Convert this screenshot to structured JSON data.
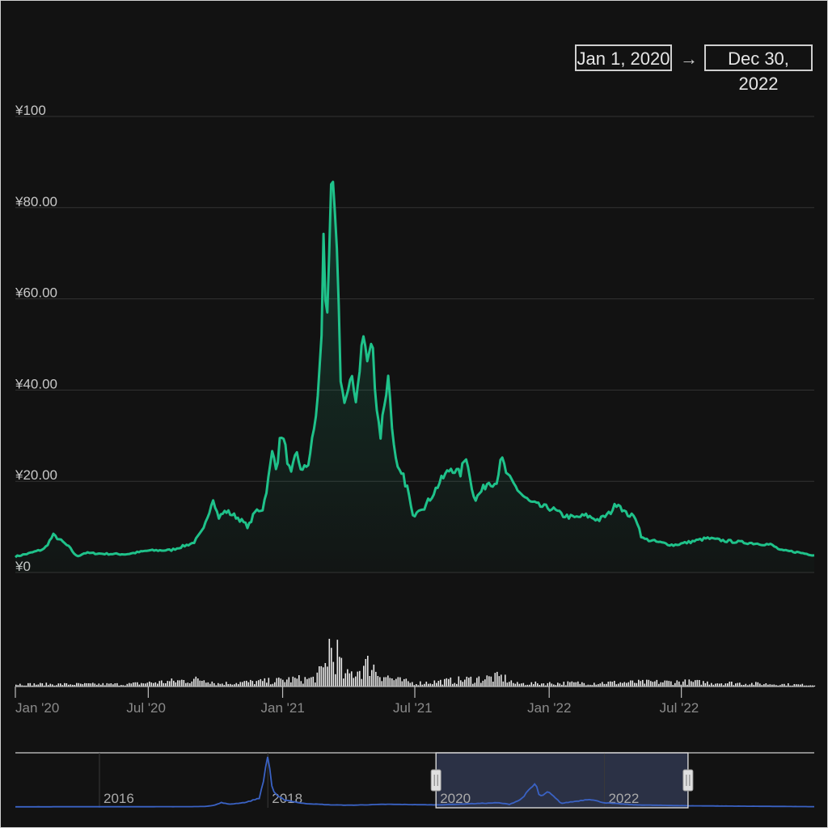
{
  "range_selector": {
    "start": "Jan 1, 2020",
    "arrow": "→",
    "end": "Dec 30, 2022"
  },
  "colors": {
    "background": "#121212",
    "price_line": "#1fc28a",
    "volume": "#e8e8e8",
    "navigator_line": "#3a62c4",
    "navigator_window": "#2b3145",
    "axis_text": "#8a8a8a",
    "label_text": "#c8c8c8",
    "grid": "#333333"
  },
  "chart_data": {
    "type": "line",
    "title": "",
    "y_axis": {
      "min": 0,
      "max": 100,
      "tick_values": [
        0,
        20,
        40,
        60,
        80,
        100
      ],
      "tick_labels": [
        "¥0",
        "¥20.00",
        "¥40.00",
        "¥60.00",
        "¥80.00",
        "¥100"
      ]
    },
    "x_axis": {
      "start": "2020-01-01",
      "end": "2022-12-30",
      "ticks": [
        {
          "date": "2020-01-01",
          "label": "Jan '20"
        },
        {
          "date": "2020-07-01",
          "label": "Jul '20"
        },
        {
          "date": "2021-01-01",
          "label": "Jan '21"
        },
        {
          "date": "2021-07-01",
          "label": "Jul '21"
        },
        {
          "date": "2022-01-01",
          "label": "Jan '22"
        },
        {
          "date": "2022-07-01",
          "label": "Jul '22"
        }
      ]
    },
    "series": [
      {
        "values": [
          [
            "2020-01-01",
            3.5
          ],
          [
            "2020-01-20",
            4.2
          ],
          [
            "2020-02-10",
            5.2
          ],
          [
            "2020-02-22",
            8.2
          ],
          [
            "2020-03-05",
            6.8
          ],
          [
            "2020-03-15",
            5.5
          ],
          [
            "2020-03-25",
            3.5
          ],
          [
            "2020-04-05",
            4.3
          ],
          [
            "2020-05-01",
            4.1
          ],
          [
            "2020-06-01",
            4.0
          ],
          [
            "2020-07-01",
            4.8
          ],
          [
            "2020-08-01",
            4.9
          ],
          [
            "2020-09-01",
            6.5
          ],
          [
            "2020-09-15",
            9.5
          ],
          [
            "2020-09-28",
            16.5
          ],
          [
            "2020-10-05",
            12.0
          ],
          [
            "2020-10-15",
            13.5
          ],
          [
            "2020-11-01",
            12.0
          ],
          [
            "2020-11-15",
            10.0
          ],
          [
            "2020-11-25",
            13.5
          ],
          [
            "2020-12-05",
            14.0
          ],
          [
            "2020-12-12",
            20.0
          ],
          [
            "2020-12-18",
            26.5
          ],
          [
            "2020-12-24",
            23.0
          ],
          [
            "2020-12-30",
            31.0
          ],
          [
            "2021-01-05",
            27.0
          ],
          [
            "2021-01-12",
            21.0
          ],
          [
            "2021-01-20",
            26.0
          ],
          [
            "2021-01-28",
            22.0
          ],
          [
            "2021-02-05",
            24.0
          ],
          [
            "2021-02-12",
            30.0
          ],
          [
            "2021-02-18",
            38.0
          ],
          [
            "2021-02-23",
            50.0
          ],
          [
            "2021-02-26",
            73.0
          ],
          [
            "2021-03-02",
            53.0
          ],
          [
            "2021-03-06",
            72.0
          ],
          [
            "2021-03-09",
            84.0
          ],
          [
            "2021-03-13",
            80.0
          ],
          [
            "2021-03-17",
            66.0
          ],
          [
            "2021-03-22",
            40.0
          ],
          [
            "2021-03-28",
            38.0
          ],
          [
            "2021-04-05",
            42.0
          ],
          [
            "2021-04-12",
            38.0
          ],
          [
            "2021-04-18",
            48.0
          ],
          [
            "2021-04-22",
            52.0
          ],
          [
            "2021-04-28",
            45.0
          ],
          [
            "2021-05-03",
            52.0
          ],
          [
            "2021-05-10",
            36.0
          ],
          [
            "2021-05-15",
            30.0
          ],
          [
            "2021-05-20",
            37.0
          ],
          [
            "2021-05-26",
            43.0
          ],
          [
            "2021-06-03",
            26.0
          ],
          [
            "2021-06-08",
            22.0
          ],
          [
            "2021-06-15",
            21.0
          ],
          [
            "2021-06-22",
            18.0
          ],
          [
            "2021-06-28",
            12.0
          ],
          [
            "2021-07-05",
            14.0
          ],
          [
            "2021-07-15",
            14.5
          ],
          [
            "2021-07-25",
            17.0
          ],
          [
            "2021-08-05",
            20.0
          ],
          [
            "2021-08-20",
            23.0
          ],
          [
            "2021-09-01",
            21.5
          ],
          [
            "2021-09-10",
            26.0
          ],
          [
            "2021-09-15",
            20.0
          ],
          [
            "2021-09-22",
            16.0
          ],
          [
            "2021-10-01",
            18.0
          ],
          [
            "2021-10-10",
            20.0
          ],
          [
            "2021-10-20",
            19.5
          ],
          [
            "2021-10-28",
            25.0
          ],
          [
            "2021-11-05",
            21.0
          ],
          [
            "2021-11-15",
            19.0
          ],
          [
            "2021-11-25",
            17.0
          ],
          [
            "2021-12-05",
            15.5
          ],
          [
            "2021-12-20",
            14.5
          ],
          [
            "2022-01-05",
            14.0
          ],
          [
            "2022-01-20",
            12.5
          ],
          [
            "2022-02-05",
            12.0
          ],
          [
            "2022-02-20",
            12.5
          ],
          [
            "2022-03-10",
            11.5
          ],
          [
            "2022-03-25",
            13.0
          ],
          [
            "2022-04-05",
            15.5
          ],
          [
            "2022-04-15",
            13.0
          ],
          [
            "2022-04-30",
            12.0
          ],
          [
            "2022-05-08",
            7.5
          ],
          [
            "2022-05-15",
            7.2
          ],
          [
            "2022-06-01",
            6.6
          ],
          [
            "2022-06-20",
            6.0
          ],
          [
            "2022-07-10",
            6.6
          ],
          [
            "2022-08-05",
            7.5
          ],
          [
            "2022-09-01",
            6.9
          ],
          [
            "2022-10-01",
            6.5
          ],
          [
            "2022-11-01",
            6.1
          ],
          [
            "2022-11-15",
            4.8
          ],
          [
            "2022-12-01",
            4.6
          ],
          [
            "2022-12-30",
            3.8
          ]
        ]
      }
    ],
    "volume": {
      "max_reference": 1,
      "values": [
        [
          "2020-01-01",
          0.05
        ],
        [
          "2020-06-01",
          0.05
        ],
        [
          "2020-09-20",
          0.16
        ],
        [
          "2020-10-01",
          0.06
        ],
        [
          "2020-12-20",
          0.12
        ],
        [
          "2021-01-10",
          0.15
        ],
        [
          "2021-02-10",
          0.16
        ],
        [
          "2021-02-26",
          0.35
        ],
        [
          "2021-03-06",
          0.95
        ],
        [
          "2021-03-10",
          0.55
        ],
        [
          "2021-03-15",
          0.75
        ],
        [
          "2021-03-25",
          0.2
        ],
        [
          "2021-04-20",
          0.4
        ],
        [
          "2021-05-01",
          0.5
        ],
        [
          "2021-05-10",
          0.3
        ],
        [
          "2021-06-01",
          0.15
        ],
        [
          "2021-07-01",
          0.07
        ],
        [
          "2021-10-28",
          0.2
        ],
        [
          "2021-11-15",
          0.06
        ],
        [
          "2022-07-01",
          0.1
        ],
        [
          "2022-12-30",
          0.03
        ]
      ]
    },
    "navigator": {
      "start": "2015-01-01",
      "end": "2024-06-30",
      "labels": [
        {
          "date": "2016-01-01",
          "label": "2016"
        },
        {
          "date": "2018-01-01",
          "label": "2018"
        },
        {
          "date": "2020-01-01",
          "label": "2020"
        },
        {
          "date": "2022-01-01",
          "label": "2022"
        }
      ],
      "window": {
        "start": "2020-01-01",
        "end": "2022-12-30"
      },
      "values": [
        [
          "2015-01-01",
          0.3
        ],
        [
          "2017-01-01",
          0.5
        ],
        [
          "2017-04-01",
          0.8
        ],
        [
          "2017-05-15",
          3.0
        ],
        [
          "2017-06-15",
          7.5
        ],
        [
          "2017-07-15",
          4.5
        ],
        [
          "2017-09-01",
          6.5
        ],
        [
          "2017-10-01",
          8.0
        ],
        [
          "2017-11-25",
          15.0
        ],
        [
          "2017-12-15",
          45.0
        ],
        [
          "2017-12-28",
          88.0
        ],
        [
          "2018-01-08",
          70.0
        ],
        [
          "2018-01-20",
          30.0
        ],
        [
          "2018-02-10",
          18.0
        ],
        [
          "2018-03-15",
          12.0
        ],
        [
          "2018-06-01",
          6.0
        ],
        [
          "2018-10-01",
          3.5
        ],
        [
          "2019-01-01",
          3.0
        ],
        [
          "2019-06-01",
          4.5
        ],
        [
          "2020-01-01",
          3.5
        ],
        [
          "2020-09-28",
          7.0
        ],
        [
          "2020-11-15",
          4.5
        ],
        [
          "2021-01-01",
          12.0
        ],
        [
          "2021-03-09",
          40.0
        ],
        [
          "2021-03-25",
          17.0
        ],
        [
          "2021-05-03",
          25.0
        ],
        [
          "2021-06-28",
          6.0
        ],
        [
          "2021-10-28",
          13.0
        ],
        [
          "2022-01-01",
          7.0
        ],
        [
          "2022-05-15",
          3.5
        ],
        [
          "2022-12-30",
          2.0
        ],
        [
          "2024-06-30",
          0.5
        ]
      ]
    }
  }
}
